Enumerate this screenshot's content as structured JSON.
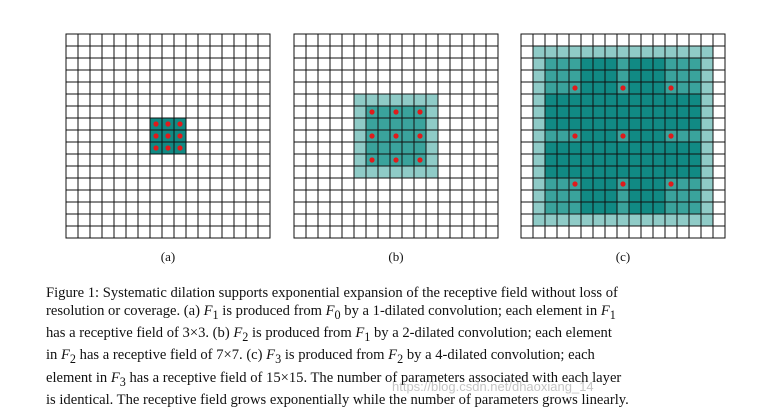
{
  "colors": {
    "cell_fill": "#ffffff",
    "light_teal": "#8fcbc7",
    "mid_teal": "#3aa39c",
    "dark_teal": "#118a84",
    "grid_line": "#111111",
    "dot": "#e01b1b"
  },
  "panels": [
    {
      "id": "a",
      "label": "(a)",
      "dilation": 1,
      "receptive_field": "3×3"
    },
    {
      "id": "b",
      "label": "(b)",
      "dilation": 2,
      "receptive_field": "7×7"
    },
    {
      "id": "c",
      "label": "(c)",
      "dilation": 4,
      "receptive_field": "15×15"
    }
  ],
  "caption": {
    "lines": [
      "Figure 1: Systematic dilation supports exponential expansion of the receptive field without loss of",
      "resolution or coverage. (a) F<sub>1</sub> is produced from F<sub>0</sub> by a 1-dilated convolution; each element in F<sub>1</sub>",
      "has a receptive field of 3×3. (b) F<sub>2</sub> is produced from F<sub>1</sub> by a 2-dilated convolution; each element",
      "in F<sub>2</sub> has a receptive field of 7×7. (c) F<sub>3</sub> is produced from F<sub>2</sub> by a 4-dilated convolution; each",
      "element in F<sub>3</sub> has a receptive field of 15×15. The number of parameters associated with each layer",
      "is identical. The receptive field grows exponentially while the number of parameters grows linearly."
    ]
  },
  "watermark": "https://blog.csdn.net/dhaoxiang_14"
}
